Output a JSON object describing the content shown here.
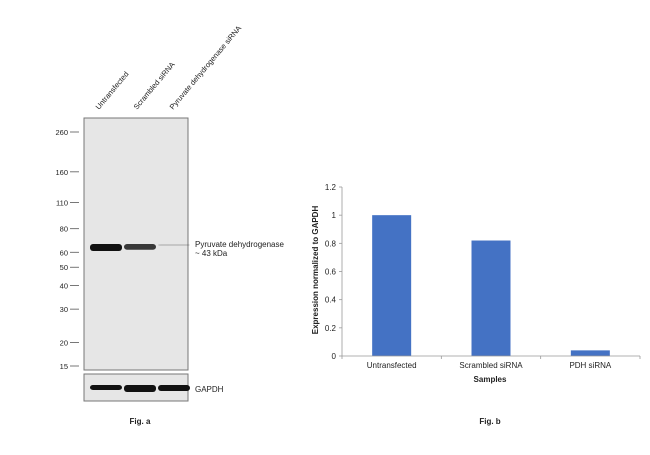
{
  "figure_a": {
    "caption": "Fig. a",
    "lanes": [
      "Untransfected",
      "Scrambled siRNA",
      "Pyruvate dehydrogenase siRNA"
    ],
    "markers": [
      "260",
      "160",
      "110",
      "80",
      "60",
      "50",
      "40",
      "30",
      "20",
      "15"
    ],
    "marker_values": [
      260,
      160,
      110,
      80,
      60,
      50,
      40,
      30,
      20,
      15
    ],
    "band_label": "Pyruvate dehydrogenase",
    "band_size": "~ 43 kDa",
    "loading_control": "GAPDH",
    "band_intensity": [
      1.0,
      0.82,
      0.04
    ]
  },
  "chart_data": {
    "type": "bar",
    "title": "",
    "caption": "Fig. b",
    "xlabel": "Samples",
    "ylabel": "Expression normalized to GAPDH",
    "categories": [
      "Untransfected",
      "Scrambled siRNA",
      "PDH siRNA"
    ],
    "values": [
      1.0,
      0.82,
      0.04
    ],
    "ylim": [
      0,
      1.2
    ],
    "yticks": [
      "0",
      "0.2",
      "0.4",
      "0.6",
      "0.8",
      "1",
      "1.2"
    ],
    "grid": false,
    "bar_color": "#4472c4"
  }
}
